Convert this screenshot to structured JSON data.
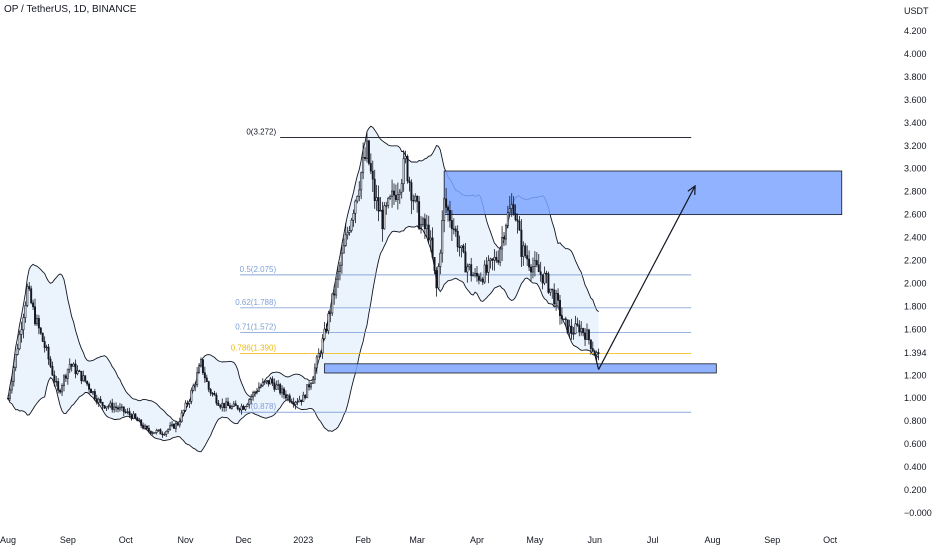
{
  "header": {
    "title": "OP / TetherUS, 1D, BINANCE"
  },
  "chart_data": {
    "type": "candlestick",
    "symbol": "OP / TetherUS",
    "interval": "1D",
    "exchange": "BINANCE",
    "currency": "USDT",
    "ylim": [
      0.0,
      4.2
    ],
    "y_ticks": [
      "4.200",
      "4.000",
      "3.800",
      "3.600",
      "3.400",
      "3.200",
      "3.000",
      "2.800",
      "2.600",
      "2.400",
      "2.200",
      "2.000",
      "1.800",
      "1.600",
      "1.394",
      "1.200",
      "1.000",
      "0.800",
      "0.600",
      "0.400",
      "0.200",
      "−0.000"
    ],
    "y_tick_values": [
      4.2,
      4.0,
      3.8,
      3.6,
      3.4,
      3.2,
      3.0,
      2.8,
      2.6,
      2.4,
      2.2,
      2.0,
      1.8,
      1.6,
      1.394,
      1.2,
      1.0,
      0.8,
      0.6,
      0.4,
      0.2,
      0.0
    ],
    "last_price": 1.394,
    "x_ticks": [
      {
        "label": "Aug",
        "day": 0
      },
      {
        "label": "Sep",
        "day": 31
      },
      {
        "label": "Oct",
        "day": 61
      },
      {
        "label": "Nov",
        "day": 92
      },
      {
        "label": "Dec",
        "day": 122
      },
      {
        "label": "2023",
        "day": 153
      },
      {
        "label": "Feb",
        "day": 184
      },
      {
        "label": "Mar",
        "day": 212
      },
      {
        "label": "Apr",
        "day": 243
      },
      {
        "label": "May",
        "day": 273
      },
      {
        "label": "Jun",
        "day": 304
      },
      {
        "label": "Jul",
        "day": 334
      },
      {
        "label": "Aug",
        "day": 365
      },
      {
        "label": "Sep",
        "day": 396
      },
      {
        "label": "Oct",
        "day": 426
      }
    ],
    "price_anchors": [
      [
        0,
        1.0
      ],
      [
        6,
        1.55
      ],
      [
        10,
        1.95
      ],
      [
        14,
        1.7
      ],
      [
        20,
        1.4
      ],
      [
        26,
        1.05
      ],
      [
        32,
        1.3
      ],
      [
        40,
        1.15
      ],
      [
        48,
        0.95
      ],
      [
        56,
        0.92
      ],
      [
        64,
        0.85
      ],
      [
        72,
        0.72
      ],
      [
        80,
        0.7
      ],
      [
        88,
        0.78
      ],
      [
        94,
        1.0
      ],
      [
        100,
        1.3
      ],
      [
        104,
        1.08
      ],
      [
        110,
        0.95
      ],
      [
        116,
        0.92
      ],
      [
        122,
        0.93
      ],
      [
        130,
        1.1
      ],
      [
        136,
        1.15
      ],
      [
        142,
        1.05
      ],
      [
        148,
        0.98
      ],
      [
        153,
        1.0
      ],
      [
        158,
        1.2
      ],
      [
        164,
        1.55
      ],
      [
        170,
        2.0
      ],
      [
        176,
        2.45
      ],
      [
        182,
        2.9
      ],
      [
        186,
        3.15
      ],
      [
        190,
        2.75
      ],
      [
        194,
        2.55
      ],
      [
        198,
        2.7
      ],
      [
        202,
        2.85
      ],
      [
        206,
        3.05
      ],
      [
        210,
        2.75
      ],
      [
        214,
        2.5
      ],
      [
        218,
        2.45
      ],
      [
        222,
        1.95
      ],
      [
        226,
        2.7
      ],
      [
        230,
        2.55
      ],
      [
        236,
        2.2
      ],
      [
        242,
        2.05
      ],
      [
        248,
        2.1
      ],
      [
        254,
        2.25
      ],
      [
        258,
        2.55
      ],
      [
        262,
        2.7
      ],
      [
        266,
        2.3
      ],
      [
        272,
        2.15
      ],
      [
        278,
        2.05
      ],
      [
        284,
        1.85
      ],
      [
        288,
        1.65
      ],
      [
        292,
        1.58
      ],
      [
        296,
        1.62
      ],
      [
        300,
        1.55
      ],
      [
        304,
        1.4
      ],
      [
        306,
        1.36
      ]
    ],
    "fib_levels": [
      {
        "label": "0(3.272)",
        "value": 3.272,
        "color": "#131722"
      },
      {
        "label": "0.5(2.075)",
        "value": 2.075,
        "color": "#7e9fd6"
      },
      {
        "label": "0.62(1.788)",
        "value": 1.788,
        "color": "#7e9fd6"
      },
      {
        "label": "0.71(1.572)",
        "value": 1.572,
        "color": "#7e9fd6"
      },
      {
        "label": "0.786(1.390)",
        "value": 1.39,
        "color": "#f0b90b"
      },
      {
        "label": "(0.878)",
        "value": 0.878,
        "color": "#7e9fd6"
      }
    ],
    "fib_range": {
      "start_day": 141,
      "end_day": 354
    },
    "zones": [
      {
        "name": "resistance-zone",
        "low": 2.6,
        "high": 2.98,
        "start_day": 226,
        "end_day": 432
      },
      {
        "name": "support-zone",
        "low": 1.22,
        "high": 1.3,
        "start_day": 164,
        "end_day": 367
      }
    ],
    "projection": [
      {
        "day": 306,
        "value": 1.25
      },
      {
        "day": 356,
        "value": 2.85
      }
    ],
    "colors": {
      "candle": "#131722",
      "band_fill": "#dbeafb",
      "band_line": "#131722",
      "zone_fill": "#7ea6ff",
      "zone_border": "#131722",
      "fib_black": "#131722",
      "fib_blue": "#7e9fd6",
      "fib_yellow": "#f0b90b"
    }
  }
}
